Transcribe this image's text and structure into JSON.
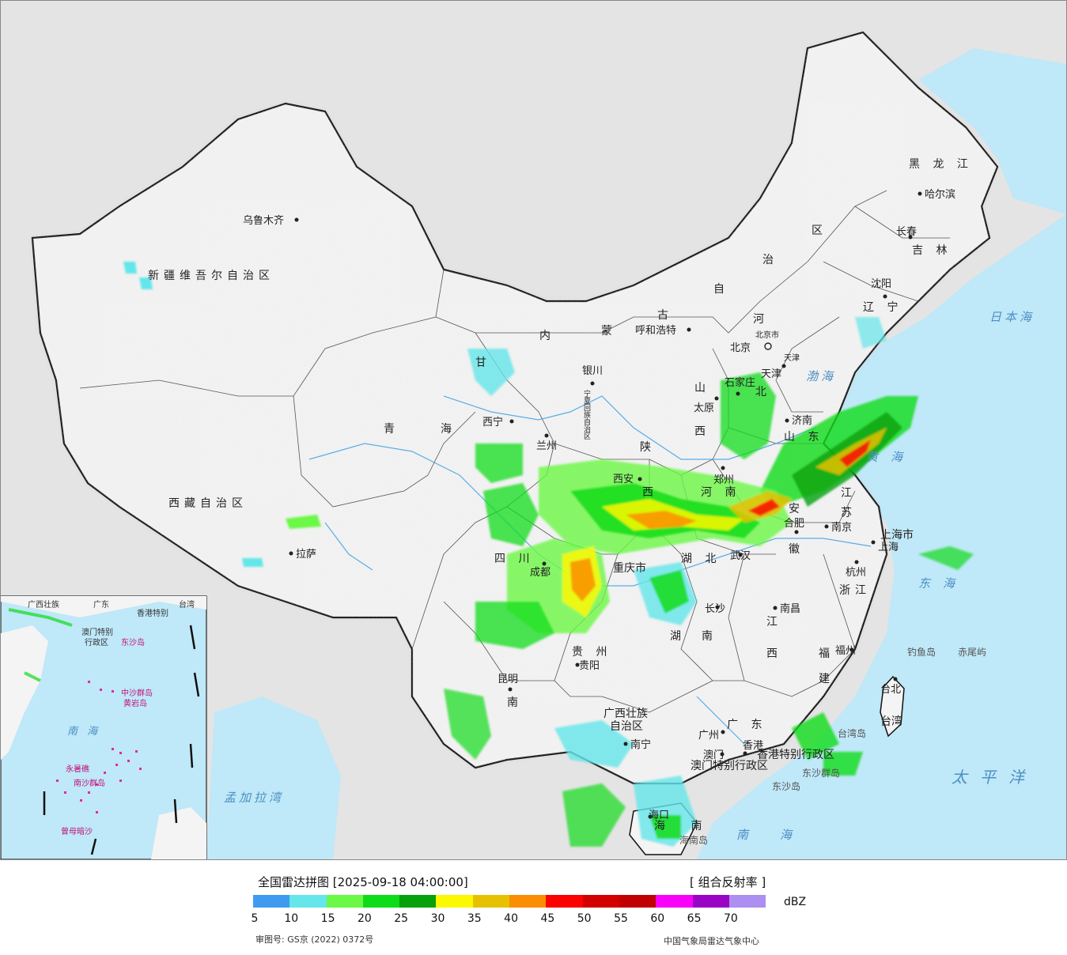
{
  "title": "全国雷达拼图 [2025-09-18 04:00:00]",
  "product": "[ 组合反射率 ]",
  "unit": "dBZ",
  "approval_number": "审图号: GS京 (2022) 0372号",
  "agency": "中国气象局雷达气象中心",
  "legend": {
    "colors": [
      "#3f9bef",
      "#64e6ea",
      "#6cf846",
      "#0fdc18",
      "#07a10e",
      "#fbf802",
      "#e6c100",
      "#fb8e00",
      "#fb0100",
      "#d30000",
      "#c10002",
      "#f900f9",
      "#9a04c4",
      "#ad8ff1"
    ],
    "ticks": [
      "5",
      "10",
      "15",
      "20",
      "25",
      "30",
      "35",
      "40",
      "45",
      "50",
      "55",
      "60",
      "65",
      "70"
    ]
  },
  "provinces": [
    {
      "id": "xinjiang",
      "text": "新疆维吾尔自治区"
    },
    {
      "id": "xizang",
      "text": "西藏自治区"
    },
    {
      "id": "qinghai-1",
      "text": "青"
    },
    {
      "id": "qinghai-2",
      "text": "海"
    },
    {
      "id": "gansu",
      "text": "甘"
    },
    {
      "id": "neimeng-1",
      "text": "内"
    },
    {
      "id": "neimeng-2",
      "text": "蒙"
    },
    {
      "id": "neimeng-3",
      "text": "古"
    },
    {
      "id": "neimeng-4",
      "text": "自"
    },
    {
      "id": "neimeng-5",
      "text": "治"
    },
    {
      "id": "neimeng-6",
      "text": "区"
    },
    {
      "id": "heilongjiang",
      "text": "黑 龙 江"
    },
    {
      "id": "jilin",
      "text": "吉 林"
    },
    {
      "id": "liaoning",
      "text": "辽 宁"
    },
    {
      "id": "hebei-1",
      "text": "河"
    },
    {
      "id": "hebei-2",
      "text": "北"
    },
    {
      "id": "shanxi-1",
      "text": "山"
    },
    {
      "id": "shanxi-2",
      "text": "西"
    },
    {
      "id": "shandong",
      "text": "山 东"
    },
    {
      "id": "shaanxi-1",
      "text": "陕"
    },
    {
      "id": "shaanxi-2",
      "text": "西"
    },
    {
      "id": "henan",
      "text": "河 南"
    },
    {
      "id": "jiangsu-1",
      "text": "江"
    },
    {
      "id": "jiangsu-2",
      "text": "苏"
    },
    {
      "id": "anhui-1",
      "text": "安"
    },
    {
      "id": "anhui-2",
      "text": "徽"
    },
    {
      "id": "hubei",
      "text": "湖 北"
    },
    {
      "id": "sichuan",
      "text": "四 川"
    },
    {
      "id": "chongqing",
      "text": "重庆市"
    },
    {
      "id": "zhejiang",
      "text": "浙江"
    },
    {
      "id": "shanghai",
      "text": "上海市"
    },
    {
      "id": "jiangxi-1",
      "text": "江"
    },
    {
      "id": "jiangxi-2",
      "text": "西"
    },
    {
      "id": "hunan-1",
      "text": "湖"
    },
    {
      "id": "hunan-2",
      "text": "南"
    },
    {
      "id": "guizhou",
      "text": "贵 州"
    },
    {
      "id": "yunnan",
      "text": "南"
    },
    {
      "id": "fujian-1",
      "text": "福"
    },
    {
      "id": "fujian-2",
      "text": "建"
    },
    {
      "id": "guangxi-1",
      "text": "广西壮族"
    },
    {
      "id": "guangxi-2",
      "text": "自治区"
    },
    {
      "id": "guangdong",
      "text": "广 东"
    },
    {
      "id": "hainan",
      "text": "海 南"
    },
    {
      "id": "taiwan",
      "text": "台湾"
    },
    {
      "id": "hk",
      "text": "香港特别行政区"
    },
    {
      "id": "macau",
      "text": "澳门特别行政区"
    },
    {
      "id": "ningxia",
      "text": "宁夏回族自治区"
    },
    {
      "id": "tianjin",
      "text": "天津"
    },
    {
      "id": "beijing",
      "text": "北京市"
    }
  ],
  "cities": [
    {
      "id": "urumqi",
      "text": "乌鲁木齐"
    },
    {
      "id": "lhasa",
      "text": "拉萨"
    },
    {
      "id": "xining",
      "text": "西宁"
    },
    {
      "id": "lanzhou",
      "text": "兰州"
    },
    {
      "id": "yinchuan",
      "text": "银川"
    },
    {
      "id": "hohhot",
      "text": "呼和浩特"
    },
    {
      "id": "harbin",
      "text": "哈尔滨"
    },
    {
      "id": "changchun",
      "text": "长春"
    },
    {
      "id": "shenyang",
      "text": "沈阳"
    },
    {
      "id": "beijing-city",
      "text": "北京"
    },
    {
      "id": "tianjin-city",
      "text": "天津"
    },
    {
      "id": "shijiazhuang",
      "text": "石家庄"
    },
    {
      "id": "taiyuan",
      "text": "太原"
    },
    {
      "id": "jinan",
      "text": "济南"
    },
    {
      "id": "zhengzhou",
      "text": "郑州"
    },
    {
      "id": "xian",
      "text": "西安"
    },
    {
      "id": "hefei",
      "text": "合肥"
    },
    {
      "id": "nanjing",
      "text": "南京"
    },
    {
      "id": "shanghai-city",
      "text": "上海"
    },
    {
      "id": "wuhan",
      "text": "武汉"
    },
    {
      "id": "chengdu",
      "text": "成都"
    },
    {
      "id": "hangzhou",
      "text": "杭州"
    },
    {
      "id": "changsha",
      "text": "长沙"
    },
    {
      "id": "nanchang",
      "text": "南昌"
    },
    {
      "id": "guiyang",
      "text": "贵阳"
    },
    {
      "id": "kunming",
      "text": "昆明"
    },
    {
      "id": "fuzhou",
      "text": "福州"
    },
    {
      "id": "taipei",
      "text": "台北"
    },
    {
      "id": "guangzhou",
      "text": "广州"
    },
    {
      "id": "nanning",
      "text": "南宁"
    },
    {
      "id": "haikou",
      "text": "海口"
    },
    {
      "id": "macau-city",
      "text": "澳门"
    },
    {
      "id": "hk-city",
      "text": "香港"
    }
  ],
  "seas": [
    {
      "id": "japan-sea",
      "text": "日本海"
    },
    {
      "id": "bohai",
      "text": "渤海"
    },
    {
      "id": "yellow-sea",
      "text": "黄海"
    },
    {
      "id": "east-sea",
      "text": "东海"
    },
    {
      "id": "pacific",
      "text": "太平洋"
    },
    {
      "id": "south-sea",
      "text": "南海"
    },
    {
      "id": "bengal",
      "text": "孟加拉湾"
    }
  ],
  "islands": [
    {
      "id": "diaoyu",
      "text": "钓鱼岛"
    },
    {
      "id": "chiwei",
      "text": "赤尾屿"
    },
    {
      "id": "taiwan-island",
      "text": "台湾岛"
    },
    {
      "id": "dongsha-islands",
      "text": "东沙群岛"
    },
    {
      "id": "dongsha-island",
      "text": "东沙岛"
    },
    {
      "id": "hainan-island",
      "text": "海南岛"
    }
  ],
  "inset": {
    "labels": [
      {
        "id": "inset-guangxi",
        "text": "广西壮族"
      },
      {
        "id": "inset-guangdong",
        "text": "广东"
      },
      {
        "id": "inset-hk",
        "text": "香港特别"
      },
      {
        "id": "inset-taiwan",
        "text": "台湾"
      },
      {
        "id": "inset-macau",
        "text": "澳门特别"
      },
      {
        "id": "inset-region",
        "text": "行政区"
      },
      {
        "id": "inset-dongsha",
        "text": "东沙岛"
      },
      {
        "id": "inset-zhongsha",
        "text": "中沙群岛"
      },
      {
        "id": "inset-huangyan",
        "text": "黄岩岛"
      },
      {
        "id": "inset-southsea",
        "text": "南 海"
      },
      {
        "id": "inset-yongshu",
        "text": "永暑礁"
      },
      {
        "id": "inset-nansha",
        "text": "南沙群岛"
      },
      {
        "id": "inset-zengmu",
        "text": "曾母暗沙"
      }
    ]
  }
}
